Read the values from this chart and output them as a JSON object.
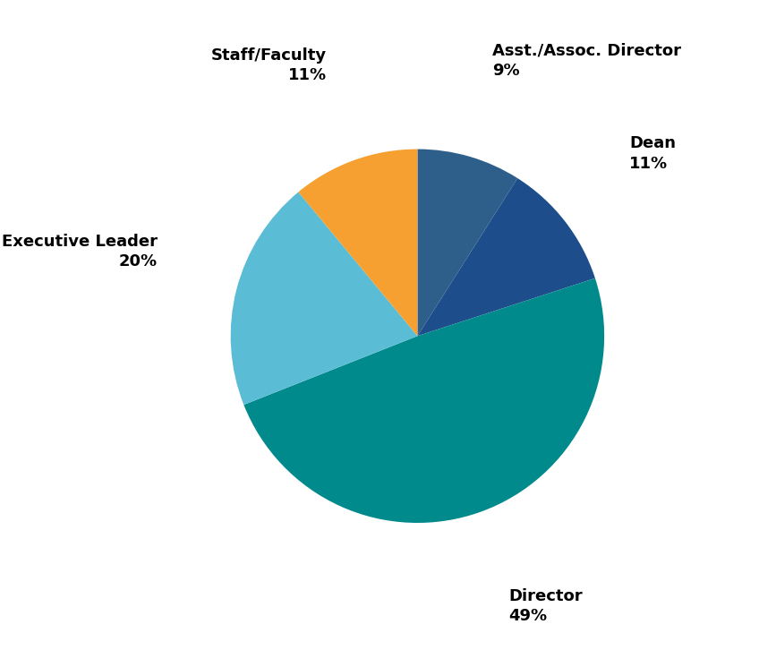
{
  "label_names": [
    "Asst./Assoc. Director",
    "Dean",
    "Director",
    "Executive Leader",
    "Staff/Faculty"
  ],
  "percentages": [
    9,
    11,
    49,
    20,
    11
  ],
  "colors": [
    "#2d5f8a",
    "#1e4d8c",
    "#008a8c",
    "#5bbcd6",
    "#f5a030"
  ],
  "startangle": 90,
  "background_color": "#ffffff",
  "label_fontsize": 13,
  "label_fontweight": "bold",
  "pct_labels": [
    "9%",
    "11%",
    "49%",
    "20%",
    "11%"
  ],
  "label_display": [
    "Asst./Assoc. Director\n9%",
    "Dean\n11%",
    "Director\n49%",
    "Executive Leader\n20%",
    "Staff/Faculty\n11%"
  ],
  "label_ha": [
    "center",
    "left",
    "center",
    "right",
    "center"
  ],
  "label_va": [
    "bottom",
    "center",
    "top",
    "center",
    "bottom"
  ]
}
